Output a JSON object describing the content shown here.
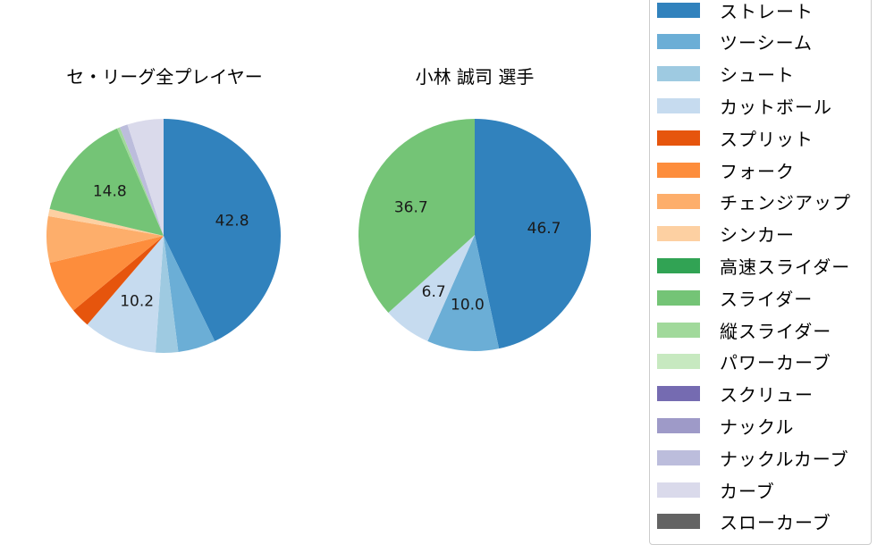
{
  "chart_data": [
    {
      "type": "pie",
      "title": "セ・リーグ全プレイヤー",
      "start_angle": 90,
      "direction": "clockwise",
      "slices": [
        {
          "label": "ストレート",
          "value": 42.8,
          "color": "#3182bd",
          "show_label": true
        },
        {
          "label": "ツーシーム",
          "value": 5.2,
          "color": "#6baed6",
          "show_label": false
        },
        {
          "label": "シュート",
          "value": 3.1,
          "color": "#9ecae1",
          "show_label": false
        },
        {
          "label": "カットボール",
          "value": 10.2,
          "color": "#c6dbef",
          "show_label": true
        },
        {
          "label": "スプリット",
          "value": 2.7,
          "color": "#e6550d",
          "show_label": false
        },
        {
          "label": "フォーク",
          "value": 7.3,
          "color": "#fd8d3c",
          "show_label": false
        },
        {
          "label": "チェンジアップ",
          "value": 6.4,
          "color": "#fdae6b",
          "show_label": false
        },
        {
          "label": "シンカー",
          "value": 1.0,
          "color": "#fdd0a2",
          "show_label": false
        },
        {
          "label": "スライダー",
          "value": 14.8,
          "color": "#74c476",
          "show_label": true
        },
        {
          "label": "縦スライダー",
          "value": 0.4,
          "color": "#a1d99b",
          "show_label": false
        },
        {
          "label": "ナックルカーブ",
          "value": 1.1,
          "color": "#bcbddc",
          "show_label": false
        },
        {
          "label": "カーブ",
          "value": 5.0,
          "color": "#dadaeb",
          "show_label": false
        }
      ]
    },
    {
      "type": "pie",
      "title": "小林 誠司  選手",
      "start_angle": 90,
      "direction": "clockwise",
      "slices": [
        {
          "label": "ストレート",
          "value": 46.7,
          "color": "#3182bd",
          "show_label": true
        },
        {
          "label": "ツーシーム",
          "value": 10.0,
          "color": "#6baed6",
          "show_label": true
        },
        {
          "label": "カットボール",
          "value": 6.7,
          "color": "#c6dbef",
          "show_label": true
        },
        {
          "label": "スライダー",
          "value": 36.7,
          "color": "#74c476",
          "show_label": true
        }
      ]
    }
  ],
  "titles": {
    "left": "セ・リーグ全プレイヤー",
    "right": "小林 誠司  選手"
  },
  "legend": [
    {
      "label": "ストレート",
      "color": "#3182bd"
    },
    {
      "label": "ツーシーム",
      "color": "#6baed6"
    },
    {
      "label": "シュート",
      "color": "#9ecae1"
    },
    {
      "label": "カットボール",
      "color": "#c6dbef"
    },
    {
      "label": "スプリット",
      "color": "#e6550d"
    },
    {
      "label": "フォーク",
      "color": "#fd8d3c"
    },
    {
      "label": "チェンジアップ",
      "color": "#fdae6b"
    },
    {
      "label": "シンカー",
      "color": "#fdd0a2"
    },
    {
      "label": "高速スライダー",
      "color": "#31a354"
    },
    {
      "label": "スライダー",
      "color": "#74c476"
    },
    {
      "label": "縦スライダー",
      "color": "#a1d99b"
    },
    {
      "label": "パワーカーブ",
      "color": "#c7e9c0"
    },
    {
      "label": "スクリュー",
      "color": "#756bb1"
    },
    {
      "label": "ナックル",
      "color": "#9e9ac8"
    },
    {
      "label": "ナックルカーブ",
      "color": "#bcbddc"
    },
    {
      "label": "カーブ",
      "color": "#dadaeb"
    },
    {
      "label": "スローカーブ",
      "color": "#636363"
    }
  ]
}
